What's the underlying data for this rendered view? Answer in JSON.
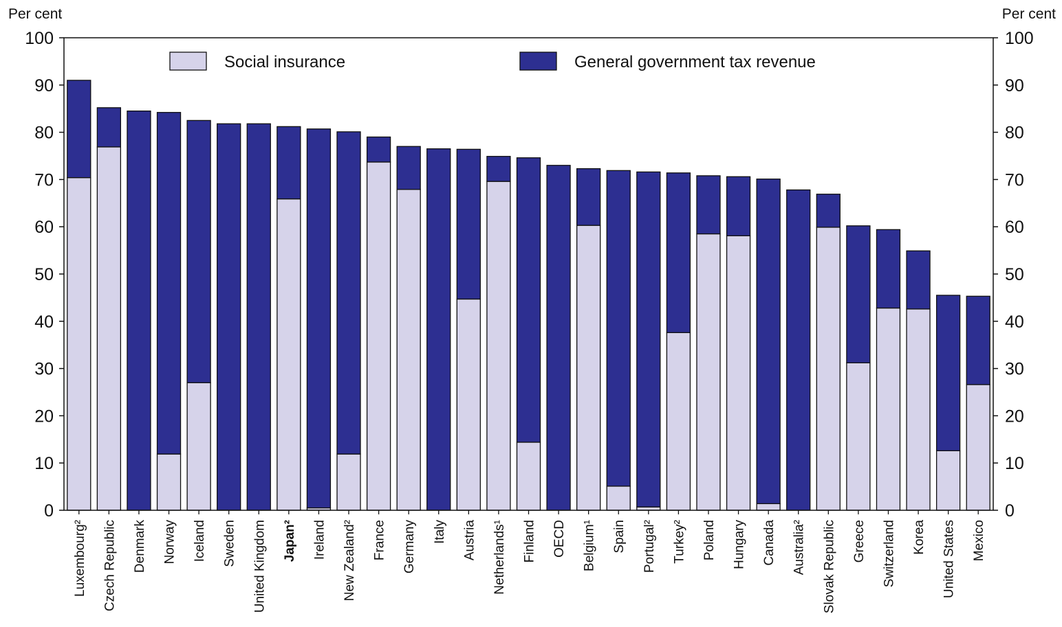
{
  "chart_data": {
    "type": "bar",
    "stacked": true,
    "left_axis_unit": "Per cent",
    "right_axis_unit": "Per cent",
    "ylim": [
      0,
      100
    ],
    "yticks": [
      0,
      10,
      20,
      30,
      40,
      50,
      60,
      70,
      80,
      90,
      100
    ],
    "grid": false,
    "legend_position": "top",
    "categories": [
      "Luxembourg²",
      "Czech Republic",
      "Denmark",
      "Norway",
      "Iceland",
      "Sweden",
      "United Kingdom",
      "Japan²",
      "Ireland",
      "New Zealand²",
      "France",
      "Germany",
      "Italy",
      "Austria",
      "Netherlands¹",
      "Finland",
      "OECD",
      "Belgium¹",
      "Spain",
      "Portugal²",
      "Turkey²",
      "Poland",
      "Hungary",
      "Canada",
      "Australia²",
      "Slovak Republic",
      "Greece",
      "Switzerland",
      "Korea",
      "United States",
      "Mexico"
    ],
    "bold_categories": [
      "Japan²"
    ],
    "totals": [
      91.0,
      85.2,
      84.5,
      84.2,
      82.5,
      81.8,
      81.8,
      81.2,
      80.7,
      80.1,
      79.0,
      77.0,
      76.5,
      76.4,
      74.9,
      74.6,
      73.0,
      72.3,
      71.9,
      71.6,
      71.4,
      70.8,
      70.6,
      70.1,
      67.8,
      66.9,
      60.2,
      59.4,
      54.9,
      45.5,
      45.3
    ],
    "series": [
      {
        "name": "Social insurance",
        "color": "#d6d3ea",
        "values": [
          70.4,
          76.9,
          0,
          11.9,
          27.0,
          0,
          0,
          65.9,
          0.5,
          11.9,
          73.7,
          67.9,
          0,
          44.7,
          69.6,
          14.4,
          0,
          60.3,
          5.1,
          0.7,
          37.6,
          58.5,
          58.1,
          1.4,
          0,
          59.9,
          31.2,
          42.8,
          42.6,
          12.6,
          26.6
        ]
      },
      {
        "name": "General government tax revenue",
        "color": "#2d2f91",
        "values": [
          20.6,
          8.3,
          84.5,
          72.3,
          55.5,
          81.8,
          81.8,
          15.3,
          80.2,
          68.2,
          5.3,
          9.1,
          76.5,
          31.7,
          5.3,
          60.2,
          73.0,
          12.0,
          66.8,
          70.9,
          33.8,
          12.3,
          12.5,
          68.7,
          67.8,
          7.0,
          29.0,
          16.6,
          12.3,
          32.9,
          18.7
        ]
      }
    ]
  }
}
